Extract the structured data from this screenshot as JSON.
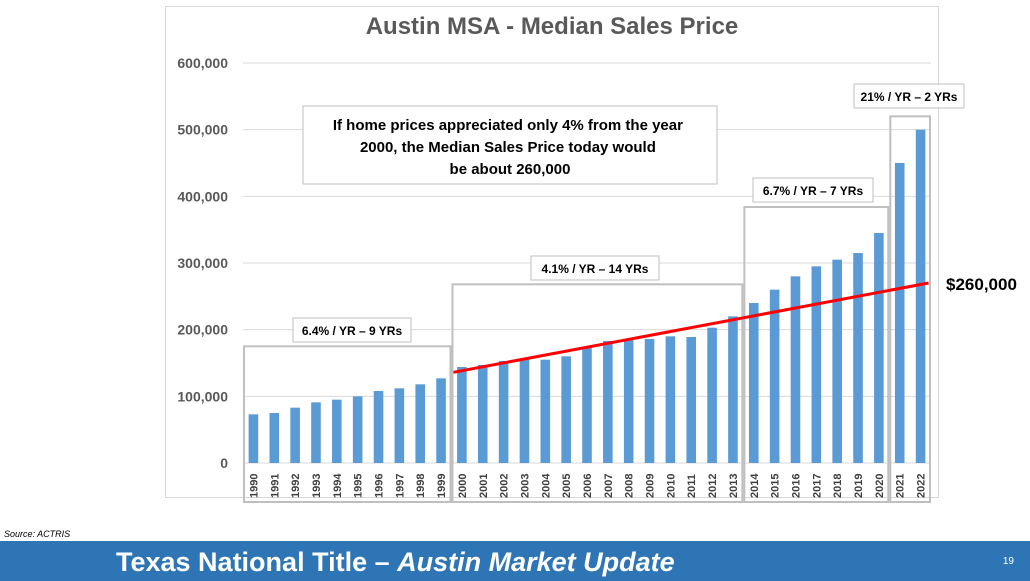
{
  "chart_data": {
    "type": "bar",
    "title": "Austin MSA - Median Sales Price",
    "categories": [
      "1990",
      "1991",
      "1992",
      "1993",
      "1994",
      "1995",
      "1996",
      "1997",
      "1998",
      "1999",
      "2000",
      "2001",
      "2002",
      "2003",
      "2004",
      "2005",
      "2006",
      "2007",
      "2008",
      "2009",
      "2010",
      "2011",
      "2012",
      "2013",
      "2014",
      "2015",
      "2016",
      "2017",
      "2018",
      "2019",
      "2020",
      "2021",
      "2022"
    ],
    "values": [
      73000,
      75000,
      83000,
      91000,
      95000,
      100000,
      108000,
      112000,
      118000,
      127000,
      144000,
      147000,
      153000,
      155000,
      155000,
      160000,
      173000,
      183000,
      186000,
      186000,
      190000,
      189000,
      203000,
      220000,
      240000,
      260000,
      280000,
      295000,
      305000,
      315000,
      345000,
      450000,
      500000
    ],
    "ylim": [
      0,
      600000
    ],
    "yticks": [
      0,
      100000,
      200000,
      300000,
      400000,
      500000,
      600000
    ],
    "ytick_labels": [
      "0",
      "100,000",
      "200,000",
      "300,000",
      "400,000",
      "500,000",
      "600,000"
    ],
    "bar_color": "#5b9bd5",
    "trendline": {
      "color": "#ff0000",
      "start": {
        "x": "2000",
        "y": 136000
      },
      "end": {
        "x": "2022",
        "y": 270000
      }
    },
    "period_boxes": [
      {
        "label": "6.4% / YR – 9 YRs",
        "from": "1990",
        "to": "1999",
        "top_value": 175000
      },
      {
        "label": "4.1% / YR – 14 YRs",
        "from": "2000",
        "to": "2013",
        "top_value": 268000
      },
      {
        "label": "6.7% / YR – 7 YRs",
        "from": "2014",
        "to": "2020",
        "top_value": 384000
      },
      {
        "label": "21% / YR – 2 YRs",
        "from": "2021",
        "to": "2022",
        "top_value": 520000
      }
    ],
    "annotation": "If home prices appreciated only 4% from the year 2000, the Median Sales Price today would be about 260,000",
    "side_label": "$260,000"
  },
  "source": "Source: ACTRIS",
  "footer": {
    "title_plain": "Texas National Title – ",
    "title_italic": "Austin Market Update",
    "page_number": "19",
    "background_color": "#2e75b6"
  }
}
